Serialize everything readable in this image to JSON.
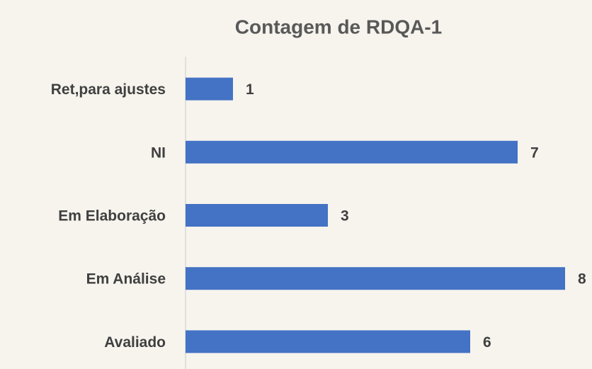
{
  "chart_data": {
    "type": "hbar",
    "title": "Contagem de RDQA-1",
    "categories": [
      "Ret,para ajustes",
      "NI",
      "Em Elaboração",
      "Em Análise",
      "Avaliado"
    ],
    "values": [
      1,
      7,
      3,
      8,
      6
    ],
    "color": "#4472c4",
    "xlim": [
      0,
      8
    ]
  }
}
